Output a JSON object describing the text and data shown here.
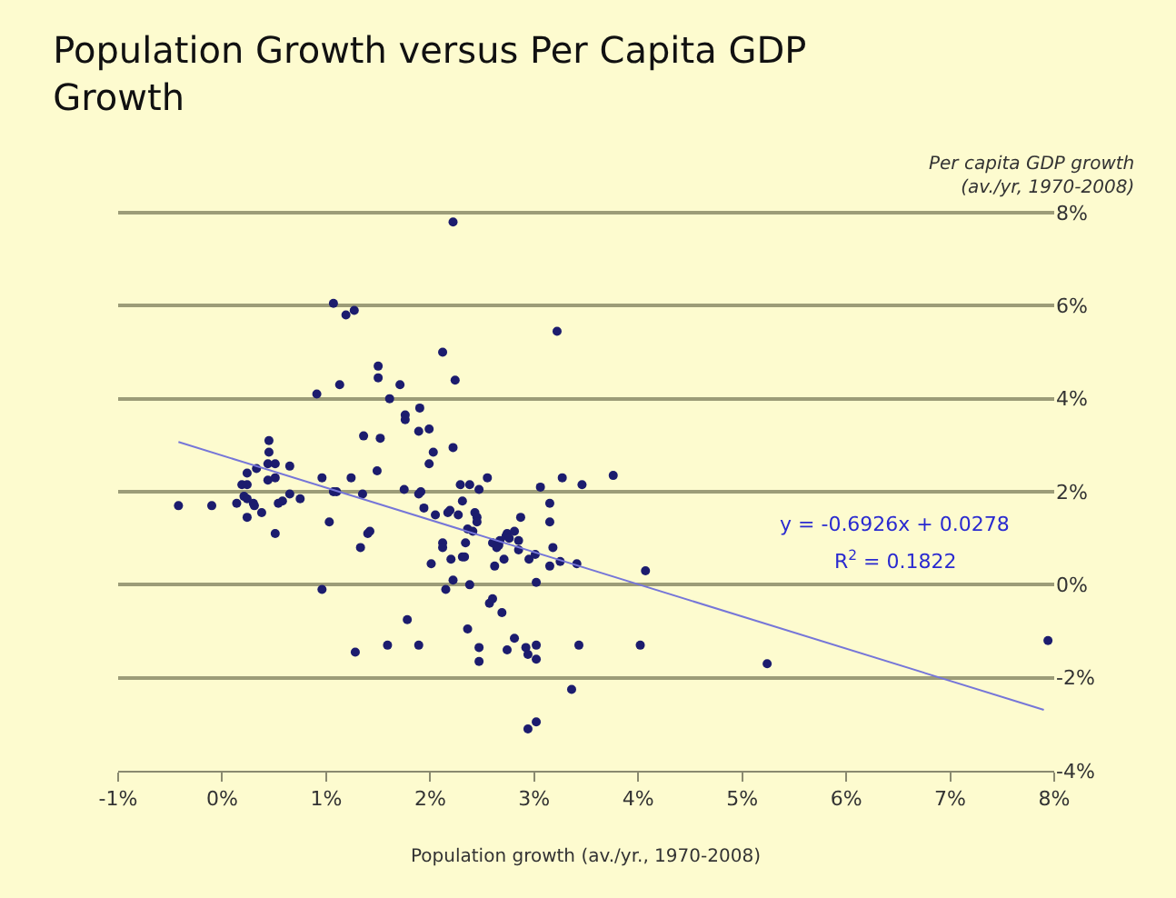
{
  "chart_data": {
    "type": "scatter",
    "title": "Population Growth versus Per Capita GDP\nGrowth",
    "xlabel": "Population growth (av./yr., 1970-2008)",
    "ylabel": "Per capita GDP growth\n(av./yr, 1970-2008)",
    "annotations": [
      "y = -0.6926x + 0.0278",
      "R$^{2}$ = 0.1822"
    ],
    "series": [
      {
        "color": "#1c1c6e",
        "marker": "circle",
        "x": [
          2.22,
          1.07,
          1.19,
          1.27,
          2.12,
          1.5,
          1.5,
          1.13,
          1.71,
          2.24,
          0.91,
          1.61,
          1.76,
          1.76,
          1.9,
          1.36,
          1.52,
          1.89,
          1.99,
          2.22,
          2.03,
          1.99,
          1.49,
          0.45,
          0.45,
          0.44,
          0.51,
          0.65,
          0.33,
          0.24,
          0.44,
          0.51,
          0.96,
          1.24,
          0.19,
          0.24,
          2.29,
          2.38,
          3.22,
          2.55,
          3.06,
          3.27,
          3.46,
          3.76,
          2.47,
          -0.42,
          -0.1,
          0.14,
          0.21,
          0.24,
          0.3,
          0.31,
          0.24,
          0.38,
          0.51,
          0.54,
          0.58,
          0.65,
          0.75,
          1.07,
          1.1,
          1.03,
          0.96,
          1.35,
          1.4,
          1.42,
          1.33,
          1.28,
          1.59,
          1.78,
          1.89,
          1.75,
          1.89,
          1.91,
          1.94,
          2.05,
          2.17,
          2.19,
          2.27,
          2.31,
          2.12,
          2.12,
          2.01,
          2.2,
          2.31,
          2.33,
          2.34,
          2.22,
          2.15,
          2.38,
          2.36,
          2.43,
          2.45,
          2.45,
          2.36,
          2.41,
          2.6,
          2.64,
          2.66,
          2.67,
          2.73,
          2.74,
          2.76,
          2.81,
          2.85,
          2.85,
          2.87,
          2.62,
          2.71,
          2.95,
          3.01,
          3.15,
          3.15,
          3.18,
          3.15,
          3.25,
          3.41,
          4.07,
          3.02,
          2.57,
          2.6,
          2.69,
          2.47,
          2.47,
          2.74,
          2.81,
          2.92,
          2.94,
          3.02,
          3.02,
          3.43,
          4.02,
          3.36,
          3.02,
          2.94,
          5.24,
          7.94
        ],
        "values": [
          7.8,
          6.05,
          5.8,
          5.9,
          5.0,
          4.7,
          4.45,
          4.3,
          4.3,
          4.4,
          4.1,
          4.0,
          3.65,
          3.55,
          3.8,
          3.2,
          3.15,
          3.3,
          3.35,
          2.95,
          2.85,
          2.6,
          2.45,
          3.1,
          2.85,
          2.6,
          2.6,
          2.55,
          2.5,
          2.4,
          2.25,
          2.3,
          2.3,
          2.3,
          2.15,
          2.15,
          2.15,
          2.15,
          5.45,
          2.3,
          2.1,
          2.3,
          2.15,
          2.35,
          2.05,
          1.7,
          1.7,
          1.75,
          1.9,
          1.85,
          1.75,
          1.7,
          1.45,
          1.55,
          1.1,
          1.75,
          1.8,
          1.95,
          1.85,
          2.0,
          2.0,
          1.35,
          -0.1,
          1.95,
          1.1,
          1.15,
          0.8,
          -1.45,
          -1.3,
          -0.75,
          -1.3,
          2.05,
          1.95,
          2.0,
          1.65,
          1.5,
          1.55,
          1.6,
          1.5,
          1.8,
          0.9,
          0.8,
          0.45,
          0.55,
          0.6,
          0.6,
          0.9,
          0.1,
          -0.1,
          0.0,
          -0.95,
          1.55,
          1.45,
          1.35,
          1.2,
          1.15,
          0.9,
          0.8,
          0.85,
          0.95,
          1.05,
          1.1,
          1.0,
          1.15,
          0.95,
          0.75,
          1.45,
          0.4,
          0.55,
          0.55,
          0.65,
          1.75,
          1.35,
          0.8,
          0.4,
          0.5,
          0.45,
          0.3,
          0.05,
          -0.4,
          -0.3,
          -0.6,
          -1.35,
          -1.65,
          -1.4,
          -1.15,
          -1.35,
          -1.5,
          -1.3,
          -1.6,
          -1.3,
          -1.3,
          -2.25,
          -2.95,
          -3.1,
          -1.7,
          -1.2
        ]
      },
      {
        "type": "line",
        "color": "#7676d8",
        "x": [
          -0.42,
          7.9
        ],
        "values": [
          3.07,
          -2.69
        ]
      }
    ],
    "xlim": [
      -1,
      8
    ],
    "xticks": [
      {
        "value": -1,
        "label": "-1%"
      },
      {
        "value": 0,
        "label": "0%"
      },
      {
        "value": 1,
        "label": "1%"
      },
      {
        "value": 2,
        "label": "2%"
      },
      {
        "value": 3,
        "label": "3%"
      },
      {
        "value": 4,
        "label": "4%"
      },
      {
        "value": 5,
        "label": "5%"
      },
      {
        "value": 6,
        "label": "6%"
      },
      {
        "value": 7,
        "label": "7%"
      },
      {
        "value": 8,
        "label": "8%"
      }
    ],
    "ylim": [
      -4,
      8
    ],
    "yticks": [
      {
        "value": -4,
        "label": "-4%"
      },
      {
        "value": -2,
        "label": "-2%"
      },
      {
        "value": 0,
        "label": "0%"
      },
      {
        "value": 2,
        "label": "2%"
      },
      {
        "value": 4,
        "label": "4%"
      },
      {
        "value": 6,
        "label": "6%"
      },
      {
        "value": 8,
        "label": "8%"
      }
    ],
    "grid": "y"
  }
}
